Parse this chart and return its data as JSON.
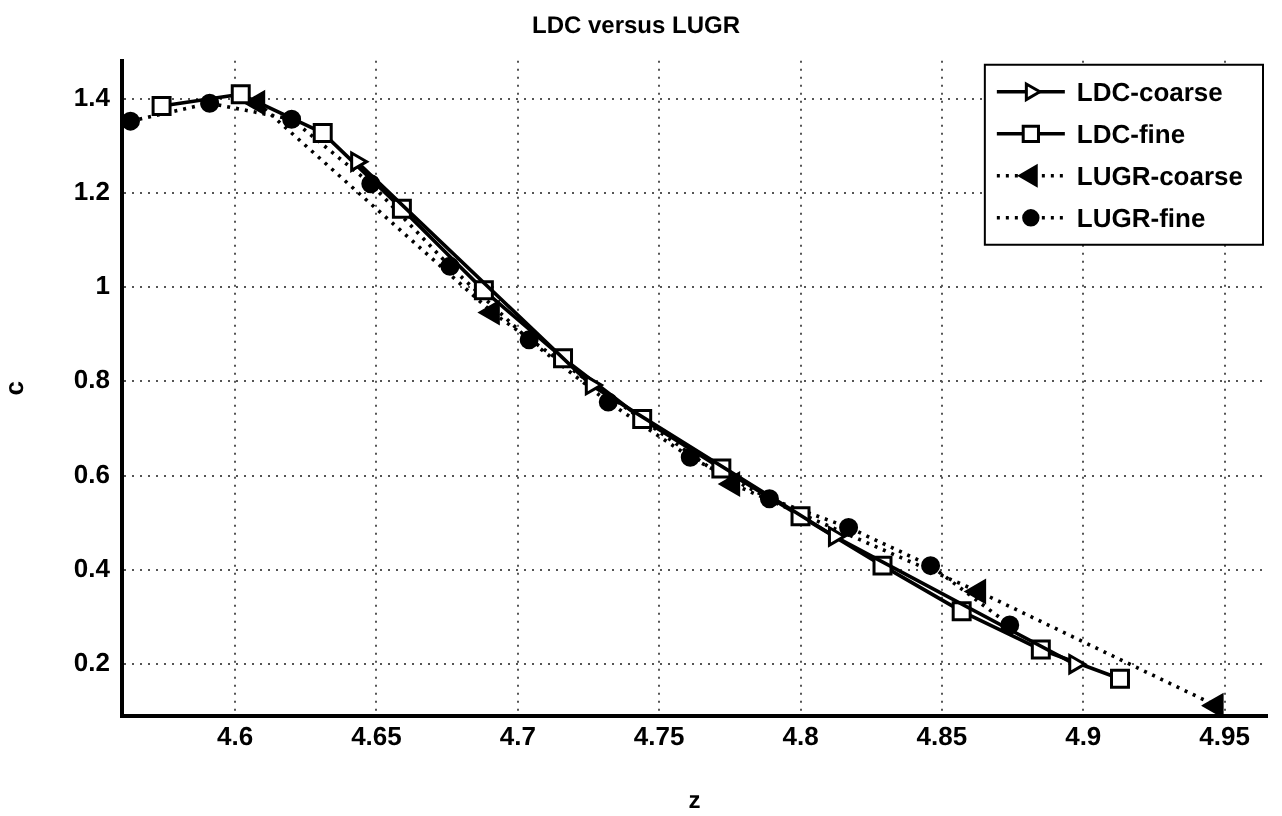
{
  "chart_data": {
    "type": "line",
    "title": "LDC versus LUGR",
    "xlabel": "z",
    "ylabel": "c",
    "xlim": [
      4.56,
      4.965
    ],
    "ylim": [
      0.09,
      1.48
    ],
    "xticks": [
      4.6,
      4.65,
      4.7,
      4.75,
      4.8,
      4.85,
      4.9,
      4.95
    ],
    "yticks": [
      0.2,
      0.4,
      0.6,
      0.8,
      1,
      1.2,
      1.4
    ],
    "grid": true,
    "legend": "top right",
    "series": [
      {
        "name": "LDC-coarse",
        "color": "#000000",
        "marker": "triangle-right-open",
        "line_style": "solid",
        "x": [
          4.643,
          4.726,
          4.812,
          4.897
        ],
        "values": [
          1.266,
          0.792,
          0.471,
          0.2
        ]
      },
      {
        "name": "LDC-fine",
        "color": "#000000",
        "marker": "square-open",
        "line_style": "solid",
        "x": [
          4.574,
          4.602,
          4.631,
          4.659,
          4.688,
          4.716,
          4.744,
          4.772,
          4.8,
          4.829,
          4.857,
          4.885,
          4.913
        ],
        "values": [
          1.384,
          1.409,
          1.327,
          1.166,
          0.993,
          0.849,
          0.72,
          0.615,
          0.514,
          0.409,
          0.312,
          0.231,
          0.169
        ]
      },
      {
        "name": "LUGR-coarse",
        "color": "#000000",
        "marker": "triangle-left",
        "line_style": "dotted",
        "x": [
          4.608,
          4.691,
          4.776,
          4.863,
          4.947
        ],
        "values": [
          1.391,
          0.946,
          0.582,
          0.354,
          0.112
        ]
      },
      {
        "name": "LUGR-fine",
        "color": "#000000",
        "marker": "circle",
        "line_style": "dotted",
        "x": [
          4.563,
          4.591,
          4.62,
          4.648,
          4.676,
          4.704,
          4.732,
          4.761,
          4.789,
          4.817,
          4.846,
          4.874
        ],
        "values": [
          1.352,
          1.39,
          1.356,
          1.219,
          1.044,
          0.888,
          0.756,
          0.639,
          0.551,
          0.49,
          0.409,
          0.283
        ]
      }
    ]
  }
}
